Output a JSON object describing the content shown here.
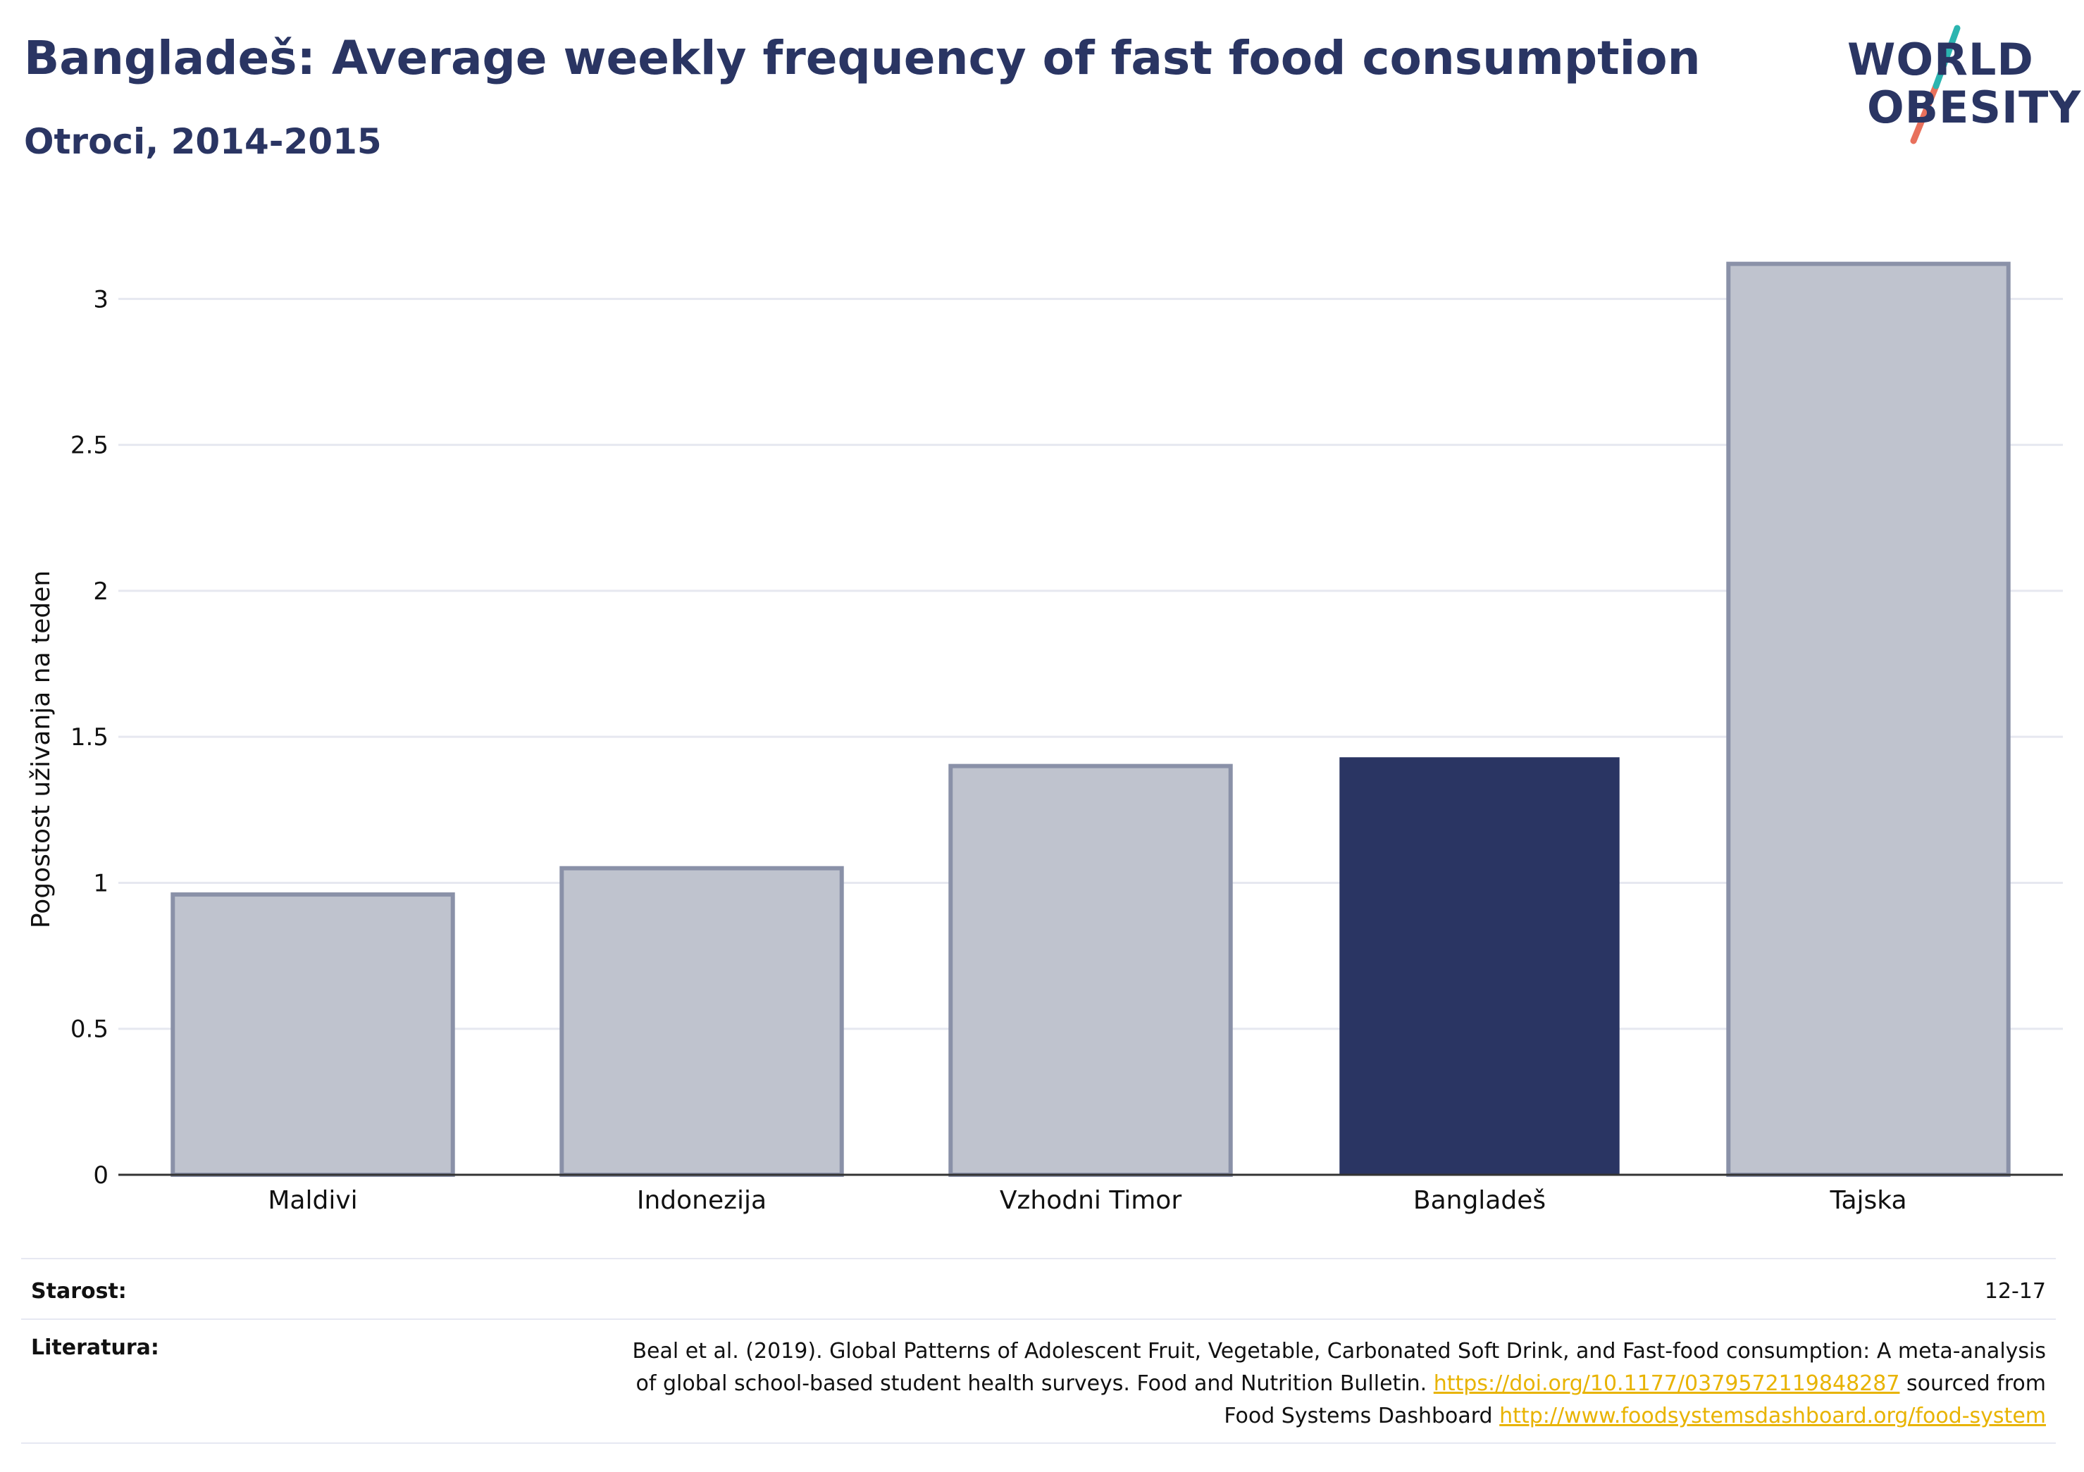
{
  "header": {
    "title": "Bangladeš: Average weekly frequency of fast food consumption",
    "subtitle": "Otroci, 2014-2015"
  },
  "logo": {
    "line1": "WORLD",
    "line2": "OBESITY",
    "accent_colors": [
      "#2bb5b0",
      "#e8705c"
    ]
  },
  "colors": {
    "highlight": "#2a3563",
    "muted_fill": "#bfc3ce",
    "muted_stroke": "#8a91a8",
    "text_dark": "#2a3563",
    "link": "#e8b300",
    "grid": "#e6e8f0"
  },
  "chart_data": {
    "type": "bar",
    "categories": [
      "Maldivi",
      "Indonezija",
      "Vzhodni Timor",
      "Bangladeš",
      "Tajska"
    ],
    "values": [
      0.96,
      1.05,
      1.4,
      1.43,
      3.12
    ],
    "highlight_index": 3,
    "ylabel": "Pogostost uživanja na teden",
    "xlabel": "",
    "ylim": [
      0,
      3.3
    ],
    "yticks": [
      0,
      0.5,
      1,
      1.5,
      2,
      2.5,
      3
    ],
    "ytick_labels": [
      "0",
      "0.5",
      "1",
      "1.5",
      "2",
      "2.5",
      "3"
    ],
    "grid": true
  },
  "footer": {
    "age_label": "Starost:",
    "age_value": "12-17",
    "lit_label": "Literatura:",
    "lit_line1": "Beal et al. (2019). Global Patterns of Adolescent Fruit, Vegetable, Carbonated Soft Drink, and Fast-food consumption: A meta-analysis",
    "lit_line2_text": "of global school-based student health surveys. Food and Nutrition Bulletin.",
    "lit_line2_link": "https://doi.org/10.1177/0379572119848287",
    "lit_line2_suffix": "sourced from",
    "lit_line3_text": "Food Systems Dashboard",
    "lit_line3_link": "http://www.foodsystemsdashboard.org/food-system"
  }
}
